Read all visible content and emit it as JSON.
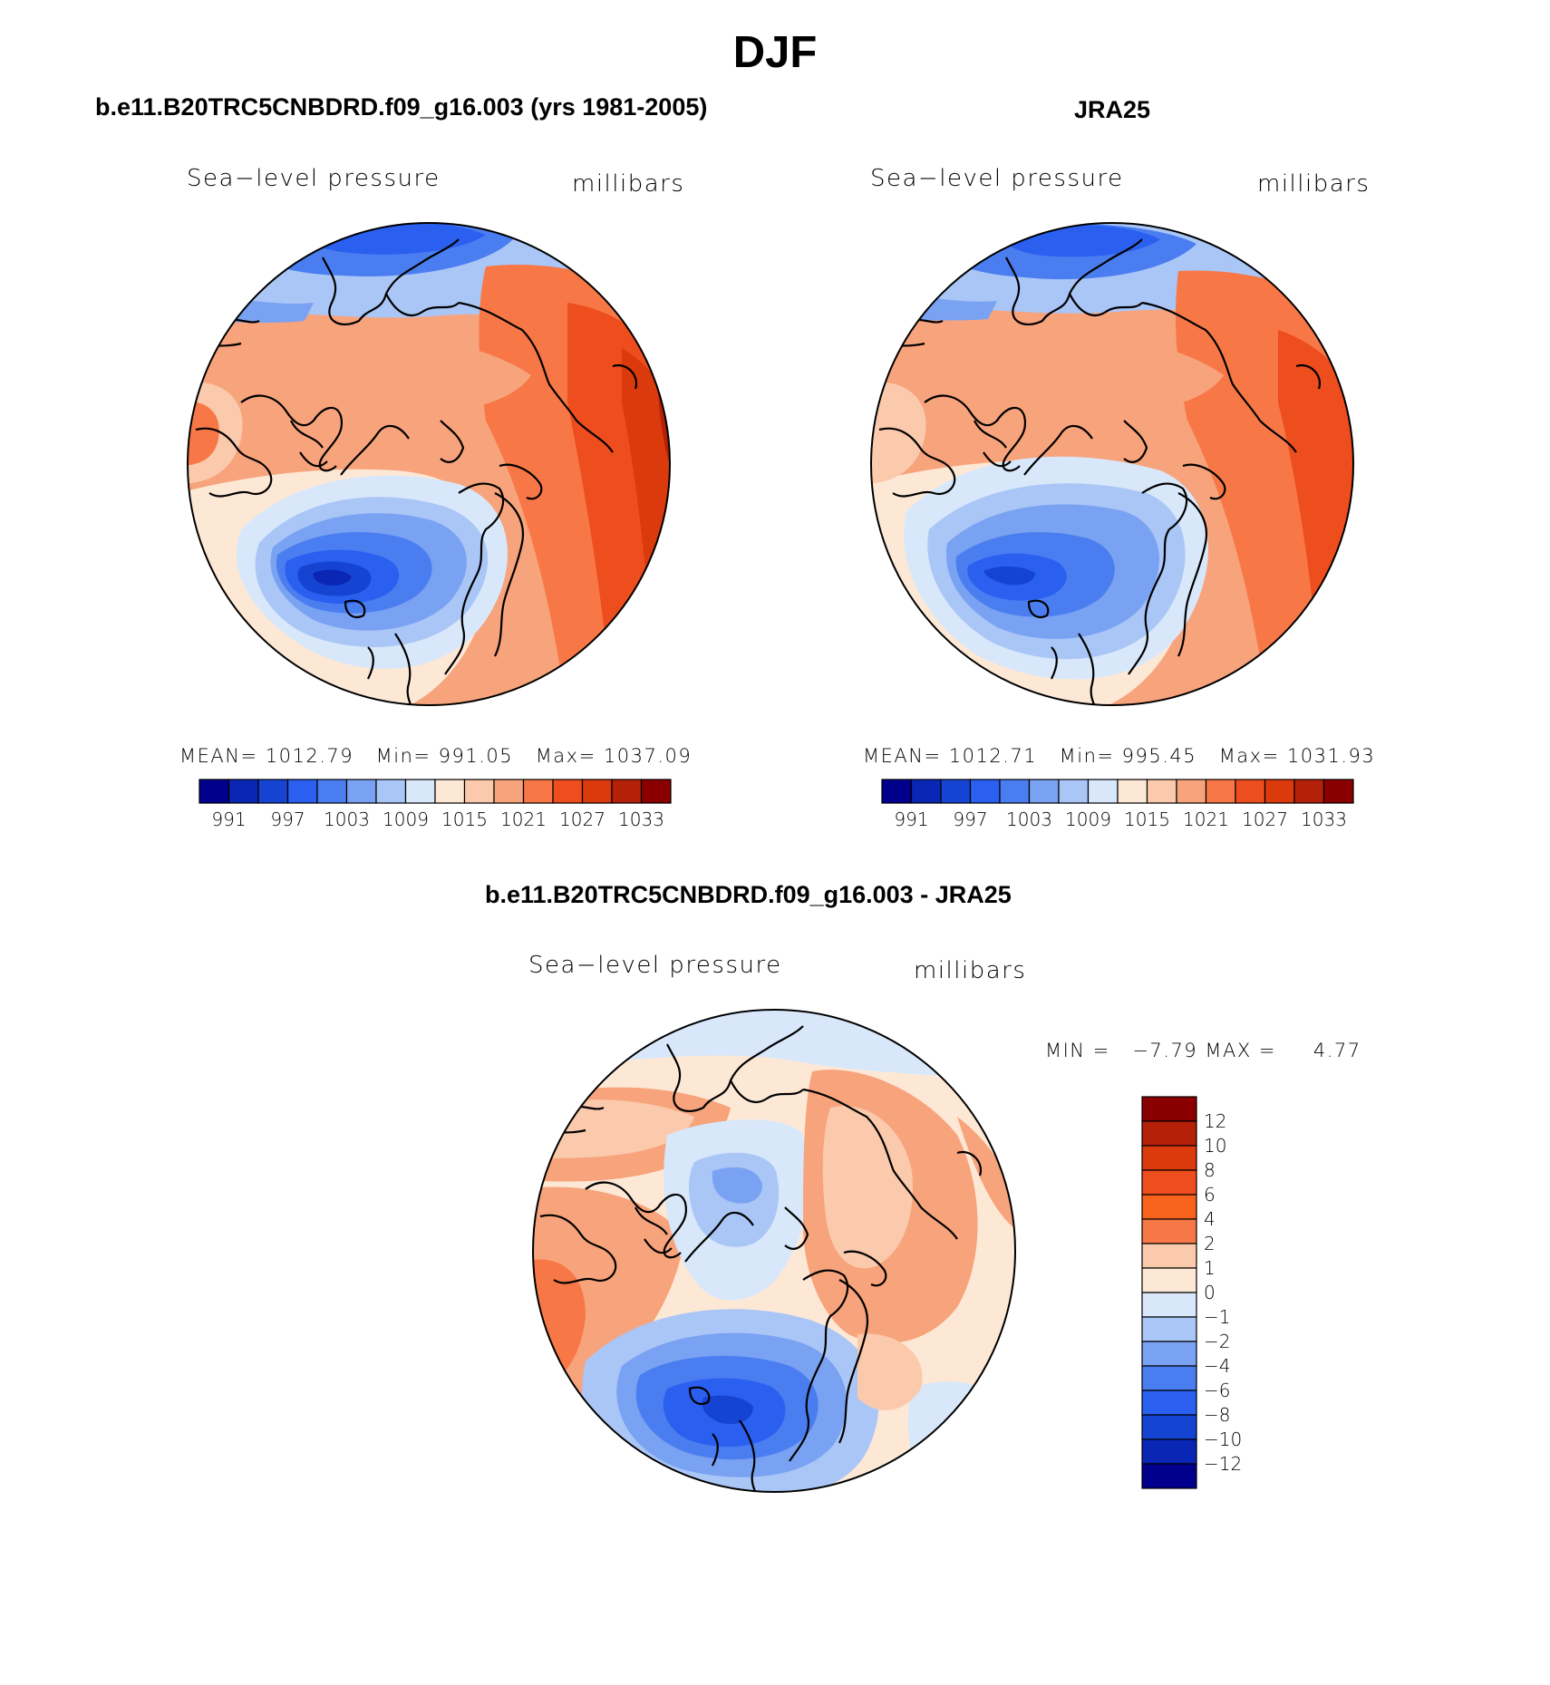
{
  "season_title": "DJF",
  "palette": [
    "#00008c",
    "#0a26b4",
    "#1544d2",
    "#2a5ff0",
    "#4a7ef0",
    "#7aa2f2",
    "#aac6f7",
    "#d8e8fa",
    "#fde8d6",
    "#fbc9ac",
    "#f7a37c",
    "#f77846",
    "#ee4d1e",
    "#db3a0c",
    "#b42008",
    "#8a0000"
  ],
  "diff_palette": [
    "#00008c",
    "#0a26b4",
    "#1544d2",
    "#2a5ff0",
    "#4a7ef0",
    "#7aa2f2",
    "#aac6f7",
    "#d8e8fa",
    "#fde8d6",
    "#fbc9ac",
    "#f77846",
    "#f7631c",
    "#ee4d1e",
    "#db3a0c",
    "#b42008",
    "#8a0000"
  ],
  "panels": [
    {
      "title": "b.e11.B20TRC5CNBDRD.f09_g16.003 (yrs 1981-2005)",
      "variable": "Sea−level pressure",
      "units": "millibars",
      "stats": {
        "mean_label": "MEAN=",
        "mean": "1012.79",
        "min_label": "Min=",
        "min": "991.05",
        "max_label": "Max=",
        "max": "1037.09"
      },
      "colorbar_ticks": [
        "991",
        "997",
        "1003",
        "1009",
        "1015",
        "1021",
        "1027",
        "1033"
      ]
    },
    {
      "title": "JRA25",
      "variable": "Sea−level pressure",
      "units": "millibars",
      "stats": {
        "mean_label": "MEAN=",
        "mean": "1012.71",
        "min_label": "Min=",
        "min": "995.45",
        "max_label": "Max=",
        "max": "1031.93"
      },
      "colorbar_ticks": [
        "991",
        "997",
        "1003",
        "1009",
        "1015",
        "1021",
        "1027",
        "1033"
      ]
    }
  ],
  "difference": {
    "title": "b.e11.B20TRC5CNBDRD.f09_g16.003 - JRA25",
    "variable": "Sea−level pressure",
    "units": "millibars",
    "min_max_text": "MIN =   −7.79 MAX =     4.77",
    "colorbar_ticks": [
      "12",
      "10",
      "8",
      "6",
      "4",
      "2",
      "1",
      "0",
      "−1",
      "−2",
      "−4",
      "−6",
      "−8",
      "−10",
      "−12"
    ]
  }
}
